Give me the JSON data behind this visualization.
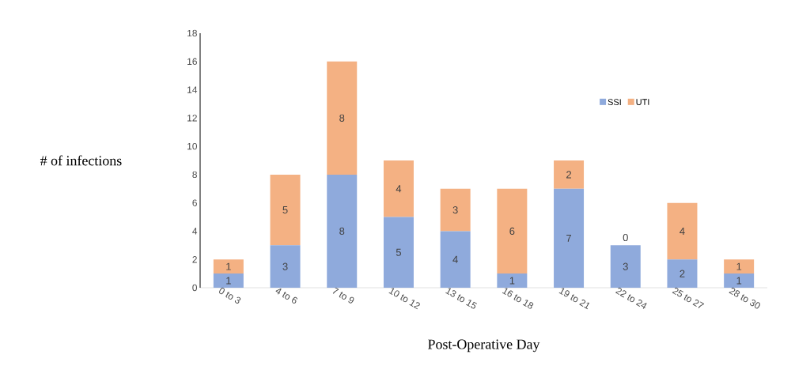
{
  "chart_data": {
    "type": "bar",
    "stacked": true,
    "xlabel": "Post-Operative Day",
    "ylabel": "# of infections",
    "categories": [
      "0 to 3",
      "4 to 6",
      "7 to 9",
      "10 to 12",
      "13 to 15",
      "16 to 18",
      "19 to 21",
      "22 to 24",
      "25 to 27",
      "28 to 30"
    ],
    "series": [
      {
        "name": "SSI",
        "color": "#8faadc",
        "values": [
          1,
          3,
          8,
          5,
          4,
          1,
          7,
          3,
          2,
          1
        ]
      },
      {
        "name": "UTI",
        "color": "#f4b183",
        "values": [
          1,
          5,
          8,
          4,
          3,
          6,
          2,
          0,
          4,
          1
        ]
      }
    ],
    "ylim": [
      0,
      18
    ],
    "yticks": [
      0,
      2,
      4,
      6,
      8,
      10,
      12,
      14,
      16,
      18
    ],
    "data_labels": true,
    "legend": "top right",
    "grid": false
  }
}
